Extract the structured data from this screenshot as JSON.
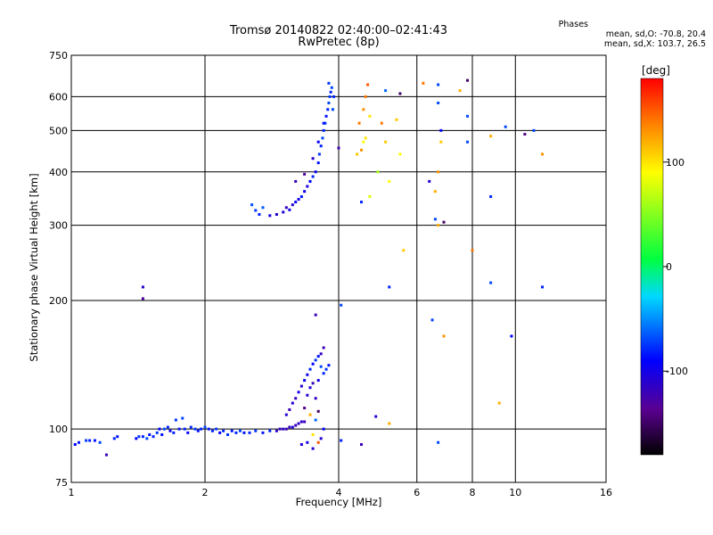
{
  "chart_data": {
    "type": "scatter",
    "title": "Tromsø 20140822 02:40:00–02:41:43",
    "subtitle": "RwPretec (8p)",
    "xlabel": "Frequency [MHz]",
    "ylabel": "Stationary phase Virtual Height [km]",
    "x_scale": "log",
    "y_scale": "log",
    "xlim": [
      1,
      16
    ],
    "ylim": [
      75,
      750
    ],
    "x_ticks": [
      "1",
      "2",
      "4",
      "6",
      "8",
      "10",
      "16"
    ],
    "x_tick_values": [
      1,
      2,
      4,
      6,
      8,
      10,
      16
    ],
    "y_ticks": [
      "750",
      "600",
      "500",
      "400",
      "300",
      "200",
      "100",
      "75"
    ],
    "y_tick_values": [
      750,
      600,
      500,
      400,
      300,
      200,
      100,
      75
    ],
    "grid": true,
    "colorbar": {
      "label": "[deg]",
      "range": [
        -180,
        180
      ],
      "ticks": [
        "100",
        "0",
        "-100"
      ],
      "tick_values": [
        100,
        0,
        -100
      ]
    },
    "phase_stats": {
      "title": "Phases",
      "line1": "mean, sd,O: -70.8, 20.4",
      "line2": "mean, sd,X: 103.7, 26.5"
    },
    "points": [
      {
        "x": 1.02,
        "y": 92,
        "p": -90
      },
      {
        "x": 1.04,
        "y": 93,
        "p": -85
      },
      {
        "x": 1.08,
        "y": 94,
        "p": -75
      },
      {
        "x": 1.1,
        "y": 94,
        "p": -80
      },
      {
        "x": 1.13,
        "y": 94,
        "p": -85
      },
      {
        "x": 1.16,
        "y": 93,
        "p": -70
      },
      {
        "x": 1.2,
        "y": 87,
        "p": -120
      },
      {
        "x": 1.25,
        "y": 95,
        "p": -80
      },
      {
        "x": 1.27,
        "y": 96,
        "p": -85
      },
      {
        "x": 1.4,
        "y": 95,
        "p": -90
      },
      {
        "x": 1.42,
        "y": 96,
        "p": -75
      },
      {
        "x": 1.45,
        "y": 96,
        "p": -80
      },
      {
        "x": 1.48,
        "y": 95,
        "p": -70
      },
      {
        "x": 1.5,
        "y": 97,
        "p": -85
      },
      {
        "x": 1.53,
        "y": 96,
        "p": -80
      },
      {
        "x": 1.56,
        "y": 98,
        "p": -75
      },
      {
        "x": 1.58,
        "y": 100,
        "p": -90
      },
      {
        "x": 1.6,
        "y": 97,
        "p": -85
      },
      {
        "x": 1.62,
        "y": 100,
        "p": -70
      },
      {
        "x": 1.65,
        "y": 101,
        "p": -80
      },
      {
        "x": 1.67,
        "y": 99,
        "p": -95
      },
      {
        "x": 1.7,
        "y": 98,
        "p": -80
      },
      {
        "x": 1.72,
        "y": 105,
        "p": -75
      },
      {
        "x": 1.75,
        "y": 100,
        "p": -85
      },
      {
        "x": 1.78,
        "y": 106,
        "p": -70
      },
      {
        "x": 1.8,
        "y": 100,
        "p": -80
      },
      {
        "x": 1.83,
        "y": 98,
        "p": -90
      },
      {
        "x": 1.86,
        "y": 101,
        "p": -80
      },
      {
        "x": 1.9,
        "y": 100,
        "p": -75
      },
      {
        "x": 1.93,
        "y": 99,
        "p": -85
      },
      {
        "x": 1.96,
        "y": 100,
        "p": -80
      },
      {
        "x": 2.0,
        "y": 101,
        "p": -70
      },
      {
        "x": 2.04,
        "y": 100,
        "p": -85
      },
      {
        "x": 2.08,
        "y": 99,
        "p": -80
      },
      {
        "x": 2.12,
        "y": 100,
        "p": -75
      },
      {
        "x": 2.16,
        "y": 98,
        "p": -90
      },
      {
        "x": 2.2,
        "y": 99,
        "p": -80
      },
      {
        "x": 2.25,
        "y": 97,
        "p": -75
      },
      {
        "x": 2.3,
        "y": 99,
        "p": -85
      },
      {
        "x": 2.35,
        "y": 98,
        "p": -80
      },
      {
        "x": 2.4,
        "y": 99,
        "p": -70
      },
      {
        "x": 2.45,
        "y": 98,
        "p": -85
      },
      {
        "x": 2.52,
        "y": 98,
        "p": -80
      },
      {
        "x": 2.6,
        "y": 99,
        "p": -75
      },
      {
        "x": 2.7,
        "y": 98,
        "p": -85
      },
      {
        "x": 2.8,
        "y": 99,
        "p": -80
      },
      {
        "x": 2.9,
        "y": 99,
        "p": -115
      },
      {
        "x": 2.95,
        "y": 100,
        "p": -118
      },
      {
        "x": 3.0,
        "y": 100,
        "p": -112
      },
      {
        "x": 3.05,
        "y": 100,
        "p": -120
      },
      {
        "x": 3.1,
        "y": 101,
        "p": -115
      },
      {
        "x": 3.15,
        "y": 101,
        "p": -110
      },
      {
        "x": 3.2,
        "y": 102,
        "p": -118
      },
      {
        "x": 3.25,
        "y": 103,
        "p": -112
      },
      {
        "x": 3.3,
        "y": 104,
        "p": -115
      },
      {
        "x": 3.35,
        "y": 104,
        "p": -120
      },
      {
        "x": 3.05,
        "y": 108,
        "p": -110
      },
      {
        "x": 3.1,
        "y": 111,
        "p": -120
      },
      {
        "x": 3.15,
        "y": 115,
        "p": -105
      },
      {
        "x": 3.2,
        "y": 118,
        "p": -115
      },
      {
        "x": 3.25,
        "y": 122,
        "p": -100
      },
      {
        "x": 3.3,
        "y": 126,
        "p": -110
      },
      {
        "x": 3.35,
        "y": 130,
        "p": -95
      },
      {
        "x": 3.4,
        "y": 134,
        "p": -100
      },
      {
        "x": 3.45,
        "y": 138,
        "p": -80
      },
      {
        "x": 3.5,
        "y": 142,
        "p": -90
      },
      {
        "x": 3.55,
        "y": 145,
        "p": -75
      },
      {
        "x": 3.6,
        "y": 148,
        "p": -85
      },
      {
        "x": 3.65,
        "y": 140,
        "p": -70
      },
      {
        "x": 3.7,
        "y": 135,
        "p": -80
      },
      {
        "x": 3.75,
        "y": 138,
        "p": -75
      },
      {
        "x": 3.8,
        "y": 141,
        "p": -85
      },
      {
        "x": 3.4,
        "y": 120,
        "p": -110
      },
      {
        "x": 3.45,
        "y": 125,
        "p": -105
      },
      {
        "x": 3.5,
        "y": 128,
        "p": -120
      },
      {
        "x": 3.55,
        "y": 118,
        "p": -115
      },
      {
        "x": 3.6,
        "y": 130,
        "p": -100
      },
      {
        "x": 3.35,
        "y": 112,
        "p": -140
      },
      {
        "x": 3.45,
        "y": 108,
        "p": 120
      },
      {
        "x": 3.5,
        "y": 97,
        "p": 100
      },
      {
        "x": 3.55,
        "y": 105,
        "p": -60
      },
      {
        "x": 3.6,
        "y": 110,
        "p": -150
      },
      {
        "x": 3.65,
        "y": 95,
        "p": -110
      },
      {
        "x": 3.7,
        "y": 100,
        "p": -90
      },
      {
        "x": 3.4,
        "y": 93,
        "p": -100
      },
      {
        "x": 3.5,
        "y": 90,
        "p": -110
      },
      {
        "x": 3.6,
        "y": 93,
        "p": 150
      },
      {
        "x": 3.3,
        "y": 92,
        "p": -105
      },
      {
        "x": 3.55,
        "y": 185,
        "p": -120
      },
      {
        "x": 3.65,
        "y": 150,
        "p": -115
      },
      {
        "x": 3.7,
        "y": 155,
        "p": -120
      },
      {
        "x": 4.05,
        "y": 195,
        "p": -70
      },
      {
        "x": 4.05,
        "y": 94,
        "p": -80
      },
      {
        "x": 4.5,
        "y": 92,
        "p": -120
      },
      {
        "x": 4.85,
        "y": 107,
        "p": -110
      },
      {
        "x": 5.2,
        "y": 103,
        "p": 120
      },
      {
        "x": 6.7,
        "y": 93,
        "p": -70
      },
      {
        "x": 2.55,
        "y": 335,
        "p": -70
      },
      {
        "x": 2.6,
        "y": 325,
        "p": -75
      },
      {
        "x": 2.65,
        "y": 318,
        "p": -80
      },
      {
        "x": 2.7,
        "y": 330,
        "p": -65
      },
      {
        "x": 2.8,
        "y": 316,
        "p": -100
      },
      {
        "x": 2.9,
        "y": 318,
        "p": -110
      },
      {
        "x": 3.0,
        "y": 322,
        "p": -105
      },
      {
        "x": 3.05,
        "y": 330,
        "p": -115
      },
      {
        "x": 3.1,
        "y": 326,
        "p": -100
      },
      {
        "x": 3.15,
        "y": 335,
        "p": -110
      },
      {
        "x": 3.2,
        "y": 340,
        "p": -90
      },
      {
        "x": 3.25,
        "y": 345,
        "p": -100
      },
      {
        "x": 3.3,
        "y": 350,
        "p": -85
      },
      {
        "x": 3.35,
        "y": 360,
        "p": -95
      },
      {
        "x": 3.4,
        "y": 370,
        "p": -105
      },
      {
        "x": 3.45,
        "y": 380,
        "p": -90
      },
      {
        "x": 3.5,
        "y": 390,
        "p": -80
      },
      {
        "x": 3.55,
        "y": 400,
        "p": -95
      },
      {
        "x": 3.6,
        "y": 420,
        "p": -85
      },
      {
        "x": 3.62,
        "y": 440,
        "p": -75
      },
      {
        "x": 3.65,
        "y": 460,
        "p": -80
      },
      {
        "x": 3.68,
        "y": 480,
        "p": -70
      },
      {
        "x": 3.7,
        "y": 500,
        "p": -80
      },
      {
        "x": 3.73,
        "y": 520,
        "p": -75
      },
      {
        "x": 3.75,
        "y": 540,
        "p": -85
      },
      {
        "x": 3.78,
        "y": 560,
        "p": -80
      },
      {
        "x": 3.8,
        "y": 580,
        "p": -70
      },
      {
        "x": 3.82,
        "y": 600,
        "p": -75
      },
      {
        "x": 3.84,
        "y": 615,
        "p": -80
      },
      {
        "x": 3.86,
        "y": 630,
        "p": -70
      },
      {
        "x": 3.8,
        "y": 645,
        "p": -75
      },
      {
        "x": 3.88,
        "y": 560,
        "p": -70
      },
      {
        "x": 3.9,
        "y": 600,
        "p": -80
      },
      {
        "x": 3.2,
        "y": 380,
        "p": -120
      },
      {
        "x": 3.35,
        "y": 395,
        "p": -130
      },
      {
        "x": 3.5,
        "y": 430,
        "p": -110
      },
      {
        "x": 3.6,
        "y": 470,
        "p": -90
      },
      {
        "x": 3.7,
        "y": 520,
        "p": -85
      },
      {
        "x": 4.0,
        "y": 455,
        "p": -120
      },
      {
        "x": 4.4,
        "y": 440,
        "p": 110
      },
      {
        "x": 4.5,
        "y": 450,
        "p": 130
      },
      {
        "x": 4.55,
        "y": 470,
        "p": 90
      },
      {
        "x": 4.6,
        "y": 480,
        "p": 100
      },
      {
        "x": 4.45,
        "y": 520,
        "p": 140
      },
      {
        "x": 4.55,
        "y": 560,
        "p": 130
      },
      {
        "x": 4.6,
        "y": 600,
        "p": 140
      },
      {
        "x": 4.65,
        "y": 640,
        "p": 150
      },
      {
        "x": 4.7,
        "y": 540,
        "p": 100
      },
      {
        "x": 4.5,
        "y": 340,
        "p": -80
      },
      {
        "x": 4.7,
        "y": 350,
        "p": 80
      },
      {
        "x": 4.9,
        "y": 400,
        "p": 60
      },
      {
        "x": 5.0,
        "y": 520,
        "p": 140
      },
      {
        "x": 5.1,
        "y": 470,
        "p": 110
      },
      {
        "x": 5.2,
        "y": 380,
        "p": 90
      },
      {
        "x": 5.4,
        "y": 530,
        "p": 110
      },
      {
        "x": 5.5,
        "y": 440,
        "p": 90
      },
      {
        "x": 5.1,
        "y": 620,
        "p": -60
      },
      {
        "x": 5.5,
        "y": 610,
        "p": -150
      },
      {
        "x": 5.2,
        "y": 215,
        "p": -80
      },
      {
        "x": 5.6,
        "y": 262,
        "p": 110
      },
      {
        "x": 6.2,
        "y": 645,
        "p": 140
      },
      {
        "x": 6.7,
        "y": 640,
        "p": -70
      },
      {
        "x": 6.4,
        "y": 380,
        "p": -110
      },
      {
        "x": 6.6,
        "y": 360,
        "p": 120
      },
      {
        "x": 6.7,
        "y": 400,
        "p": 130
      },
      {
        "x": 6.7,
        "y": 300,
        "p": 120
      },
      {
        "x": 6.9,
        "y": 305,
        "p": -150
      },
      {
        "x": 6.6,
        "y": 310,
        "p": -70
      },
      {
        "x": 6.8,
        "y": 500,
        "p": -90
      },
      {
        "x": 6.8,
        "y": 470,
        "p": 110
      },
      {
        "x": 6.5,
        "y": 180,
        "p": -70
      },
      {
        "x": 6.9,
        "y": 165,
        "p": 130
      },
      {
        "x": 6.7,
        "y": 580,
        "p": -70
      },
      {
        "x": 7.8,
        "y": 655,
        "p": -150
      },
      {
        "x": 7.8,
        "y": 540,
        "p": -70
      },
      {
        "x": 7.8,
        "y": 470,
        "p": -70
      },
      {
        "x": 8.0,
        "y": 262,
        "p": 140
      },
      {
        "x": 7.5,
        "y": 620,
        "p": 120
      },
      {
        "x": 8.8,
        "y": 485,
        "p": 120
      },
      {
        "x": 8.8,
        "y": 350,
        "p": -80
      },
      {
        "x": 8.8,
        "y": 220,
        "p": -70
      },
      {
        "x": 9.2,
        "y": 115,
        "p": 120
      },
      {
        "x": 9.5,
        "y": 510,
        "p": -70
      },
      {
        "x": 9.8,
        "y": 165,
        "p": -90
      },
      {
        "x": 10.5,
        "y": 490,
        "p": -140
      },
      {
        "x": 11.0,
        "y": 500,
        "p": -70
      },
      {
        "x": 11.5,
        "y": 440,
        "p": 130
      },
      {
        "x": 11.5,
        "y": 215,
        "p": -80
      },
      {
        "x": 1.45,
        "y": 215,
        "p": -110
      },
      {
        "x": 1.45,
        "y": 202,
        "p": -130
      }
    ]
  }
}
